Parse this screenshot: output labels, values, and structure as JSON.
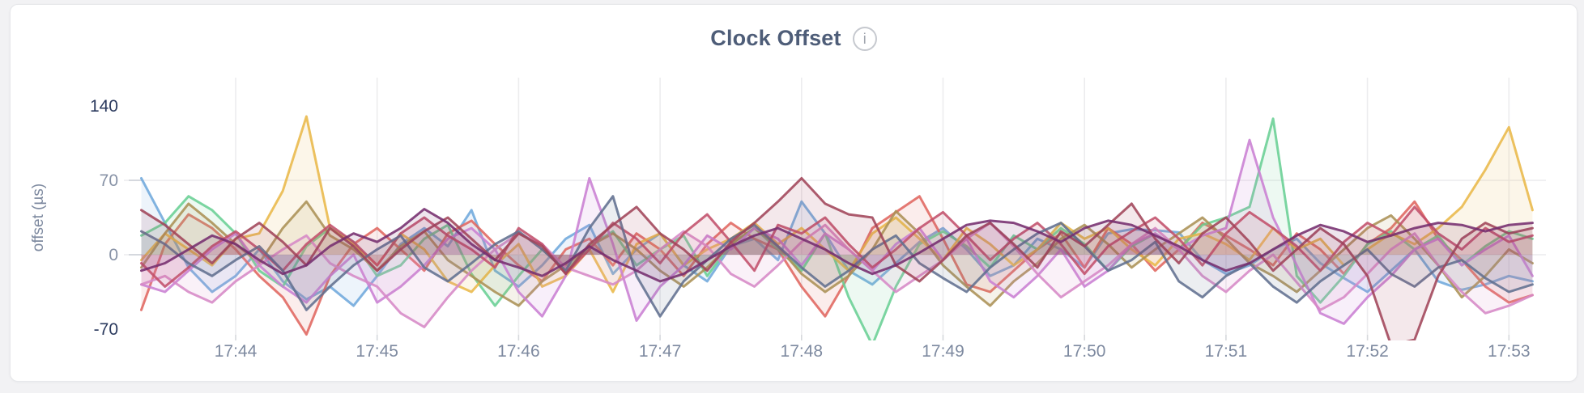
{
  "header": {
    "title": "Clock Offset",
    "info_icon_glyph": "i"
  },
  "chart_data": {
    "type": "line",
    "title": "Clock Offset",
    "xlabel": "",
    "ylabel": "offset (µs)",
    "y_ticks": [
      {
        "value": 140,
        "label": "140",
        "emphasis": true
      },
      {
        "value": 70,
        "label": "70",
        "emphasis": false
      },
      {
        "value": 0,
        "label": "0",
        "emphasis": false
      },
      {
        "value": -70,
        "label": "-70",
        "emphasis": true
      }
    ],
    "x_ticks": [
      "17:44",
      "17:45",
      "17:46",
      "17:47",
      "17:48",
      "17:49",
      "17:50",
      "17:51",
      "17:52",
      "17:53"
    ],
    "x_start_time": "17:43:20",
    "x_step_seconds": 10,
    "ylim": [
      -80,
      150
    ],
    "grid": true,
    "legend": "none",
    "fill_to_zero": true,
    "series": [
      {
        "name": "series-blue",
        "color": "#6fa8dc",
        "values": [
          72,
          30,
          -12,
          -35,
          -20,
          5,
          -25,
          -42,
          -30,
          -48,
          -20,
          10,
          25,
          8,
          42,
          -15,
          -30,
          -10,
          15,
          28,
          -18,
          5,
          20,
          -10,
          -25,
          8,
          15,
          -5,
          50,
          20,
          -15,
          -28,
          -8,
          12,
          25,
          5,
          -20,
          -10,
          15,
          5,
          -12,
          20,
          24,
          23,
          21,
          -5,
          -18,
          -10,
          5,
          15,
          -8,
          -22,
          -35,
          -15,
          5,
          -25,
          -33,
          -28,
          -20,
          -25
        ]
      },
      {
        "name": "series-red",
        "color": "#e06760",
        "values": [
          -52,
          10,
          38,
          25,
          5,
          -20,
          -40,
          -75,
          -20,
          10,
          25,
          5,
          -15,
          20,
          32,
          10,
          -10,
          -25,
          5,
          15,
          -10,
          20,
          5,
          -20,
          10,
          30,
          15,
          5,
          -30,
          -58,
          -20,
          25,
          40,
          55,
          15,
          -28,
          -35,
          -15,
          5,
          20,
          -12,
          25,
          10,
          -15,
          5,
          30,
          18,
          5,
          -10,
          20,
          5,
          -18,
          10,
          25,
          50,
          15,
          -5,
          -30,
          -45,
          -38
        ]
      },
      {
        "name": "series-green",
        "color": "#69cf94",
        "values": [
          18,
          30,
          55,
          42,
          20,
          -15,
          -30,
          8,
          25,
          12,
          -20,
          -10,
          15,
          28,
          -18,
          -48,
          -20,
          5,
          -15,
          8,
          22,
          -10,
          5,
          18,
          -20,
          10,
          25,
          5,
          -15,
          20,
          -40,
          -85,
          -30,
          10,
          22,
          8,
          -12,
          18,
          5,
          25,
          10,
          -15,
          8,
          20,
          5,
          28,
          35,
          45,
          128,
          -20,
          -45,
          -20,
          10,
          22,
          5,
          18,
          -10,
          8,
          22,
          15
        ]
      },
      {
        "name": "series-yellow",
        "color": "#e9b849",
        "values": [
          -5,
          20,
          5,
          -10,
          15,
          20,
          60,
          130,
          25,
          10,
          -10,
          20,
          5,
          -25,
          -35,
          -10,
          10,
          -30,
          -20,
          5,
          -35,
          10,
          20,
          -10,
          5,
          15,
          30,
          10,
          25,
          5,
          -15,
          20,
          35,
          15,
          -5,
          25,
          10,
          -10,
          5,
          30,
          15,
          25,
          5,
          -10,
          15,
          20,
          10,
          -5,
          25,
          5,
          15,
          -10,
          5,
          20,
          10,
          25,
          45,
          80,
          120,
          42
        ]
      },
      {
        "name": "series-khaki",
        "color": "#ab9155",
        "values": [
          -12,
          20,
          48,
          30,
          10,
          -8,
          25,
          50,
          18,
          5,
          -15,
          8,
          22,
          -5,
          -20,
          -35,
          -48,
          -25,
          -10,
          8,
          20,
          5,
          -15,
          -30,
          -12,
          10,
          25,
          8,
          -18,
          -35,
          -20,
          5,
          41,
          20,
          -10,
          -30,
          -48,
          -25,
          -8,
          15,
          28,
          10,
          -12,
          5,
          20,
          35,
          15,
          -8,
          -20,
          -35,
          -15,
          5,
          25,
          37,
          15,
          -10,
          -40,
          -20,
          5,
          -8
        ]
      },
      {
        "name": "series-orchid",
        "color": "#c97fd3",
        "values": [
          -28,
          -35,
          -15,
          5,
          20,
          -10,
          -30,
          -45,
          -20,
          0,
          -45,
          -30,
          -10,
          15,
          25,
          5,
          -35,
          -58,
          -20,
          72,
          10,
          -62,
          -30,
          -10,
          18,
          5,
          25,
          15,
          -10,
          20,
          5,
          -15,
          10,
          25,
          -5,
          15,
          -25,
          -40,
          -20,
          5,
          -30,
          -15,
          10,
          20,
          5,
          18,
          25,
          108,
          35,
          -10,
          -55,
          -65,
          -40,
          -20,
          5,
          15,
          -10,
          5,
          18,
          -20
        ]
      },
      {
        "name": "series-violet",
        "color": "#d689c6",
        "values": [
          -28,
          -20,
          -35,
          -45,
          -25,
          -10,
          5,
          18,
          -8,
          -20,
          -30,
          -55,
          -68,
          -40,
          -15,
          5,
          20,
          10,
          -12,
          -20,
          -28,
          -15,
          5,
          22,
          8,
          -18,
          -30,
          -10,
          12,
          28,
          5,
          -15,
          -35,
          -20,
          -5,
          15,
          30,
          8,
          -18,
          -40,
          -25,
          -10,
          10,
          25,
          5,
          -20,
          -35,
          -15,
          0,
          -26,
          -52,
          -40,
          -18,
          5,
          20,
          -10,
          -35,
          -55,
          -48,
          -38
        ]
      },
      {
        "name": "series-crimson",
        "color": "#c2506b",
        "values": [
          -8,
          -30,
          -12,
          8,
          22,
          5,
          -15,
          10,
          28,
          12,
          -10,
          20,
          35,
          18,
          5,
          -12,
          25,
          10,
          -18,
          5,
          30,
          15,
          -8,
          20,
          38,
          12,
          -15,
          28,
          20,
          35,
          10,
          -12,
          5,
          25,
          40,
          18,
          -5,
          15,
          30,
          10,
          -18,
          8,
          22,
          35,
          15,
          -10,
          20,
          40,
          25,
          8,
          -15,
          12,
          30,
          18,
          45,
          20,
          5,
          25,
          12,
          18
        ]
      },
      {
        "name": "series-slate",
        "color": "#61708f",
        "values": [
          22,
          10,
          -8,
          -20,
          -5,
          8,
          -15,
          -52,
          -30,
          -10,
          5,
          18,
          -12,
          -25,
          -8,
          10,
          22,
          5,
          -15,
          25,
          55,
          -20,
          -58,
          -25,
          -5,
          15,
          28,
          8,
          -12,
          -30,
          -15,
          5,
          18,
          -8,
          -22,
          -35,
          -12,
          5,
          20,
          30,
          8,
          -15,
          -5,
          12,
          -25,
          -40,
          -20,
          -8,
          -30,
          -45,
          -25,
          -10,
          5,
          -18,
          -30,
          -12,
          -5,
          -22,
          -35,
          -28
        ]
      },
      {
        "name": "series-maroon",
        "color": "#a14459",
        "values": [
          42,
          28,
          10,
          -8,
          15,
          30,
          12,
          -10,
          25,
          8,
          -15,
          5,
          22,
          35,
          15,
          -5,
          20,
          8,
          -18,
          10,
          28,
          45,
          20,
          5,
          -15,
          12,
          30,
          50,
          72,
          48,
          38,
          35,
          -10,
          -25,
          -5,
          18,
          30,
          10,
          -12,
          22,
          8,
          28,
          48,
          15,
          -8,
          20,
          35,
          12,
          -15,
          5,
          25,
          10,
          -20,
          -85,
          -80,
          -20,
          15,
          30,
          20,
          25
        ]
      },
      {
        "name": "series-purple",
        "color": "#752d6e",
        "values": [
          -15,
          -8,
          5,
          18,
          10,
          -5,
          -18,
          -10,
          8,
          20,
          12,
          25,
          43,
          30,
          10,
          -5,
          -12,
          -20,
          -8,
          8,
          -5,
          -15,
          -25,
          -18,
          -5,
          8,
          18,
          25,
          15,
          5,
          -8,
          -18,
          -10,
          2,
          15,
          28,
          32,
          30,
          22,
          12,
          25,
          32,
          28,
          18,
          8,
          -5,
          -15,
          -8,
          5,
          18,
          28,
          22,
          12,
          18,
          25,
          30,
          28,
          22,
          28,
          30
        ]
      }
    ]
  }
}
